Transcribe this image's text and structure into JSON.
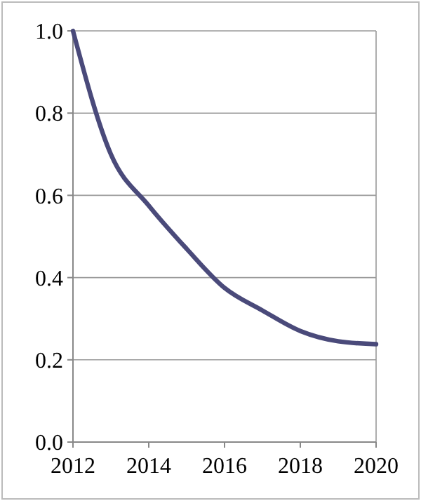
{
  "chart_data": {
    "type": "line",
    "x": [
      2012,
      2013,
      2014,
      2015,
      2016,
      2017,
      2018,
      2019,
      2020
    ],
    "series": [
      {
        "color": "#4a4a7a",
        "values": [
          1.0,
          0.7,
          0.575,
          0.47,
          0.375,
          0.32,
          0.27,
          0.245,
          0.238
        ]
      }
    ],
    "xlim": [
      2012,
      2020
    ],
    "xticks": [
      2012,
      2014,
      2016,
      2018,
      2020
    ],
    "ylim": [
      0,
      1
    ],
    "yticks": [
      {
        "value": 0,
        "label": "0.0"
      },
      {
        "value": 0.2,
        "label": "0.2"
      },
      {
        "value": 0.4,
        "label": "0.4"
      },
      {
        "value": 0.6,
        "label": "0.6"
      },
      {
        "value": 0.8,
        "label": "0.8"
      },
      {
        "value": 1,
        "label": "1.0"
      }
    ],
    "grid": "y",
    "marker": "none",
    "line_style": "solid"
  }
}
